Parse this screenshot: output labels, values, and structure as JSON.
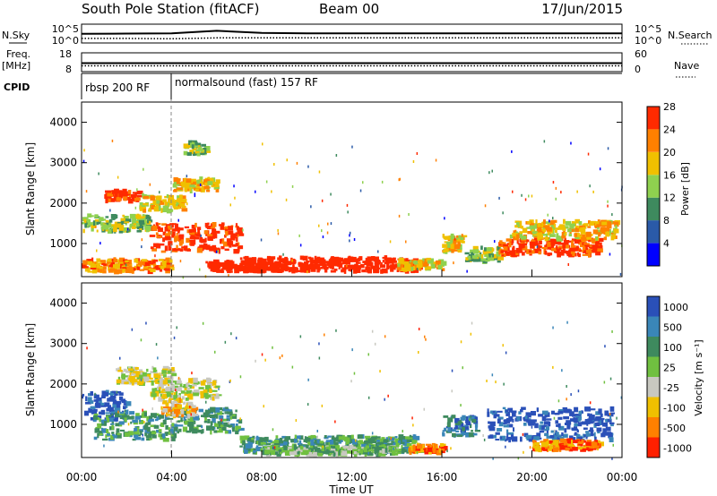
{
  "header": {
    "station": "South Pole Station (fitACF)",
    "beam": "Beam 00",
    "date": "17/Jun/2015"
  },
  "chart_data": [
    {
      "type": "line",
      "panel": "nsky-nsearch",
      "left_label": "N.Sky",
      "right_label": "N.Search",
      "left_ticks": [
        "10^5",
        "10^0"
      ],
      "right_ticks": [
        "10^5",
        "10^0"
      ],
      "x": [
        0,
        2,
        4,
        6,
        8,
        10,
        12,
        14,
        16,
        18,
        20,
        22,
        24
      ],
      "series": [
        {
          "values": [
            2.4,
            2.5,
            2.6,
            3.4,
            2.7,
            2.6,
            2.6,
            2.6,
            2.6,
            2.6,
            2.6,
            2.6,
            2.6
          ]
        },
        {
          "values": [
            0.9,
            0.9,
            0.8,
            1.1,
            1.1,
            1.1,
            1.1,
            1.1,
            1.1,
            1.1,
            1.1,
            1.1,
            1.1
          ]
        }
      ]
    },
    {
      "type": "line",
      "panel": "freq-nave",
      "left_label": "Freq.",
      "left_unit": "[MHz]",
      "right_label": "Nave",
      "left_ticks": [
        "18",
        "8"
      ],
      "right_ticks": [
        "60",
        "0"
      ],
      "x": [
        0,
        4,
        8,
        12,
        16,
        20,
        24
      ],
      "series": [
        {
          "values": [
            12.4,
            12.4,
            12.4,
            12.4,
            12.4,
            12.4,
            12.4
          ]
        },
        {
          "values": [
            30,
            30,
            30,
            30,
            30,
            30,
            30
          ]
        }
      ]
    },
    {
      "type": "table",
      "panel": "cpid",
      "label": "CPID",
      "segments": [
        {
          "start": 0.0,
          "end": 4.0,
          "text": "rbsp 200 RF"
        },
        {
          "start": 4.0,
          "end": 24.0,
          "text": "normalsound (fast) 157 RF"
        }
      ]
    },
    {
      "type": "heatmap",
      "panel": "power",
      "ylabel": "Slant Range [km]",
      "ylim": [
        180,
        4500
      ],
      "yticks": [
        1000,
        2000,
        3000,
        4000
      ],
      "xlim": [
        0,
        24
      ],
      "colorbar_label": "Power [dB]",
      "colorbar_ticks": [
        4,
        8,
        12,
        16,
        20,
        24,
        28
      ],
      "colors": [
        "#0000ff",
        "#2a5aa8",
        "#3e8a5e",
        "#8fd14f",
        "#f0c000",
        "#ff8000",
        "#ff2a00"
      ],
      "blobs": [
        {
          "t0": 0.0,
          "t1": 4.0,
          "r0": 300,
          "r1": 600,
          "v": 5
        },
        {
          "t0": 0.0,
          "t1": 3.0,
          "r0": 1300,
          "r1": 1700,
          "v": 3
        },
        {
          "t0": 1.0,
          "t1": 2.5,
          "r0": 2050,
          "r1": 2300,
          "v": 6
        },
        {
          "t0": 2.5,
          "t1": 4.5,
          "r0": 1800,
          "r1": 2200,
          "v": 4
        },
        {
          "t0": 3.0,
          "t1": 7.0,
          "r0": 800,
          "r1": 1500,
          "v": 6
        },
        {
          "t0": 4.0,
          "t1": 6.0,
          "r0": 2300,
          "r1": 2600,
          "v": 4
        },
        {
          "t0": 4.5,
          "t1": 5.5,
          "r0": 3200,
          "r1": 3500,
          "v": 3
        },
        {
          "t0": 5.5,
          "t1": 8.0,
          "r0": 300,
          "r1": 550,
          "v": 7
        },
        {
          "t0": 7.0,
          "t1": 15.0,
          "r0": 300,
          "r1": 650,
          "v": 7
        },
        {
          "t0": 14.0,
          "t1": 16.0,
          "r0": 350,
          "r1": 600,
          "v": 4
        },
        {
          "t0": 16.0,
          "t1": 17.0,
          "r0": 800,
          "r1": 1200,
          "v": 4
        },
        {
          "t0": 17.0,
          "t1": 18.5,
          "r0": 550,
          "r1": 900,
          "v": 3
        },
        {
          "t0": 18.5,
          "t1": 23.0,
          "r0": 700,
          "r1": 1100,
          "v": 6
        },
        {
          "t0": 19.0,
          "t1": 23.8,
          "r0": 1100,
          "r1": 1550,
          "v": 4
        }
      ]
    },
    {
      "type": "heatmap",
      "panel": "velocity",
      "ylabel": "Slant Range [km]",
      "xlabel": "Time UT",
      "ylim": [
        180,
        4500
      ],
      "yticks": [
        1000,
        2000,
        3000,
        4000
      ],
      "xlim": [
        0,
        24
      ],
      "xticks": [
        "00:00",
        "04:00",
        "08:00",
        "12:00",
        "16:00",
        "20:00",
        "00:00"
      ],
      "colorbar_label": "Velocity [m s⁻¹]",
      "colorbar_ticks": [
        "1000",
        "500",
        "100",
        "25",
        "-25",
        "-100",
        "-500",
        "-1000"
      ],
      "colors": [
        "#2a50b8",
        "#3a86b8",
        "#3e8a5e",
        "#70c040",
        "#c8c8c0",
        "#f0c000",
        "#ff8000",
        "#ff2000"
      ],
      "blobs": [
        {
          "t0": 0.0,
          "t1": 2.0,
          "r0": 1100,
          "r1": 1800,
          "v": 0
        },
        {
          "t0": 0.5,
          "t1": 4.0,
          "r0": 600,
          "r1": 1300,
          "v": 2
        },
        {
          "t0": 1.5,
          "t1": 4.0,
          "r0": 2000,
          "r1": 2400,
          "v": 4
        },
        {
          "t0": 3.0,
          "t1": 6.0,
          "r0": 1600,
          "r1": 2100,
          "v": 4
        },
        {
          "t0": 4.0,
          "t1": 7.0,
          "r0": 800,
          "r1": 1400,
          "v": 2
        },
        {
          "t0": 3.5,
          "t1": 5.0,
          "r0": 1200,
          "r1": 1600,
          "v": 5
        },
        {
          "t0": 7.0,
          "t1": 15.0,
          "r0": 300,
          "r1": 700,
          "v": 2
        },
        {
          "t0": 8.0,
          "t1": 14.0,
          "r0": 250,
          "r1": 450,
          "v": 3
        },
        {
          "t0": 14.5,
          "t1": 16.0,
          "r0": 300,
          "r1": 500,
          "v": 6
        },
        {
          "t0": 16.0,
          "t1": 17.5,
          "r0": 700,
          "r1": 1200,
          "v": 1
        },
        {
          "t0": 18.0,
          "t1": 23.5,
          "r0": 600,
          "r1": 1400,
          "v": 0
        },
        {
          "t0": 20.0,
          "t1": 23.0,
          "r0": 350,
          "r1": 600,
          "v": 6
        }
      ]
    }
  ]
}
